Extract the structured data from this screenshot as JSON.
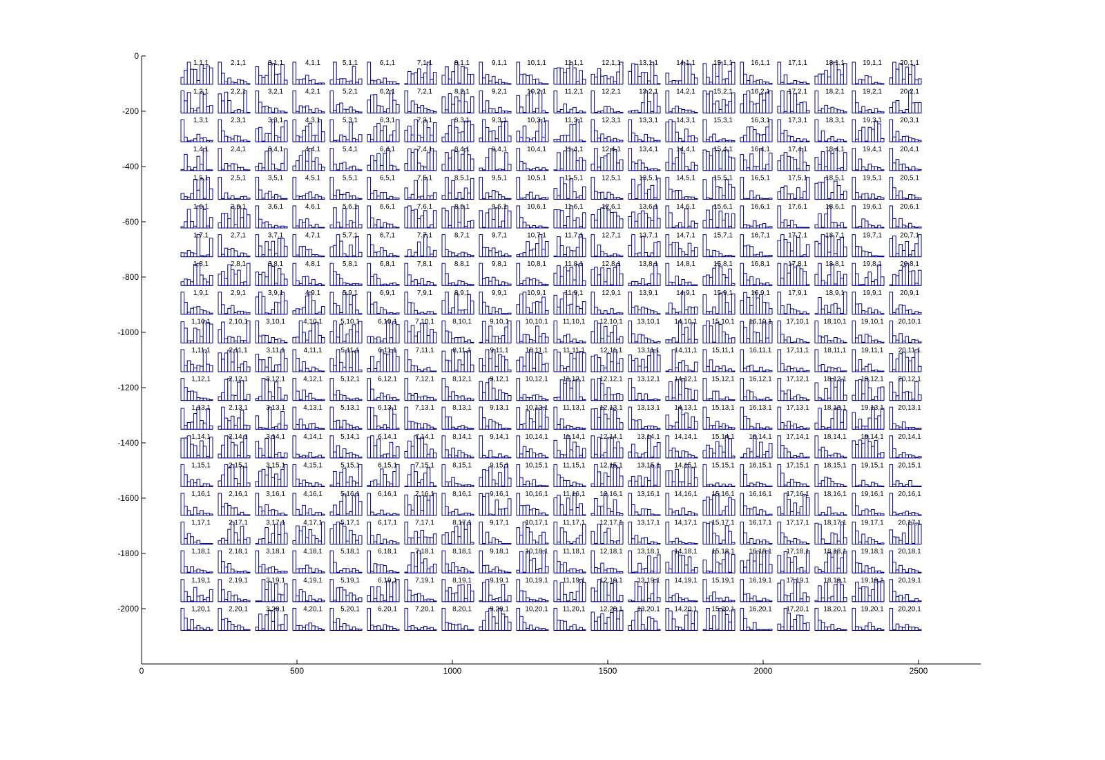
{
  "chart_data": {
    "type": "bar",
    "description_of_grid": "20 x 20 grid of small histograms, each labelled col,row,1",
    "x_axis": {
      "ticks": [
        0,
        500,
        1000,
        1500,
        2000,
        2500
      ],
      "xlim": [
        0,
        2700
      ]
    },
    "y_axis": {
      "ticks": [
        0,
        -200,
        -400,
        -600,
        -800,
        -1000,
        -1200,
        -1400,
        -1600,
        -1800,
        -2000
      ],
      "ylim": [
        -2200,
        0
      ]
    },
    "grid": false,
    "columns": 20,
    "rows": 20,
    "cell_label_format": "{c},{r},1",
    "bars_per_cell": 10,
    "bar_color": "#00008b"
  }
}
